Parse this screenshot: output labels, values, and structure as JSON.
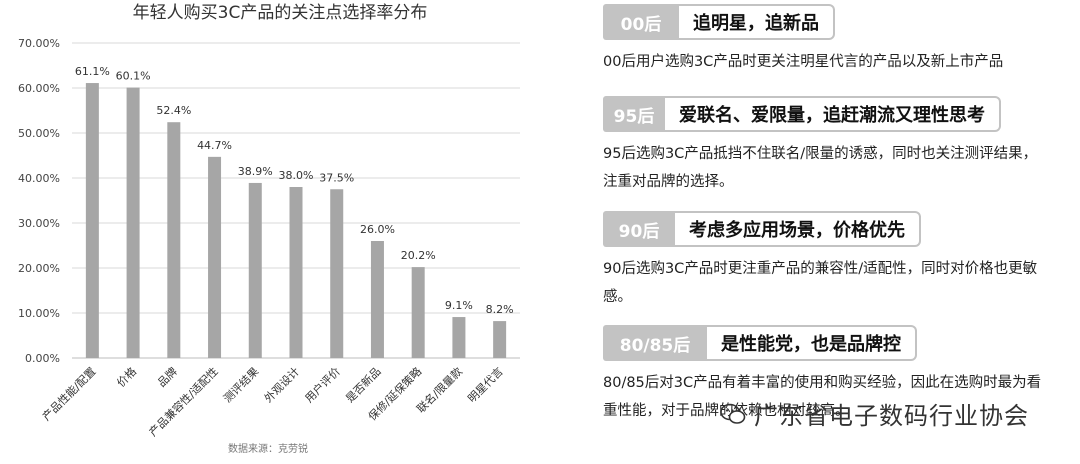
{
  "chart_data": {
    "type": "bar",
    "title": "年轻人购买3C产品的关注点选择率分布",
    "categories": [
      "产品性能/配置",
      "价格",
      "品牌",
      "产品兼容性/适配性",
      "测评结果",
      "外观设计",
      "用户评价",
      "是否新品",
      "保修/延保策略",
      "联名/限量款",
      "明星代言"
    ],
    "values": [
      61.1,
      60.1,
      52.4,
      44.7,
      38.9,
      38.0,
      37.5,
      26.0,
      20.2,
      9.1,
      8.2
    ],
    "value_labels": [
      "61.1%",
      "60.1%",
      "52.4%",
      "44.7%",
      "38.9%",
      "38.0%",
      "37.5%",
      "26.0%",
      "20.2%",
      "9.1%",
      "8.2%"
    ],
    "y_ticks": [
      "0.00%",
      "10.00%",
      "20.00%",
      "30.00%",
      "40.00%",
      "50.00%",
      "60.00%",
      "70.00%"
    ],
    "ylim": [
      0,
      70
    ],
    "grid": true,
    "bar_color": "#a6a6a6",
    "xlabel": "",
    "ylabel": "",
    "source": "数据来源：克劳锐"
  },
  "segments": [
    {
      "tag": "00后",
      "headline": "追明星，追新品",
      "desc": "00后用户选购3C产品时更关注明星代言的产品以及新上市产品"
    },
    {
      "tag": "95后",
      "headline": "爱联名、爱限量，追赶潮流又理性思考",
      "desc": "95后选购3C产品抵挡不住联名/限量的诱惑，同时也关注测评结果，注重对品牌的选择。"
    },
    {
      "tag": "90后",
      "headline": "考虑多应用场景，价格优先",
      "desc": "90后选购3C产品时更注重产品的兼容性/适配性，同时对价格也更敏感。"
    },
    {
      "tag": "80/85后",
      "headline": "是性能党，也是品牌控",
      "desc": "80/85后对3C产品有着丰富的使用和购买经验，因此在选购时最为看重性能，对于品牌的依赖也相对较高。"
    }
  ],
  "brand": {
    "text": "广东省电子数码行业协会",
    "icon": "wechat-icon"
  },
  "colors": {
    "pill_gray": "#c3c3c3",
    "bar": "#a6a6a6"
  }
}
